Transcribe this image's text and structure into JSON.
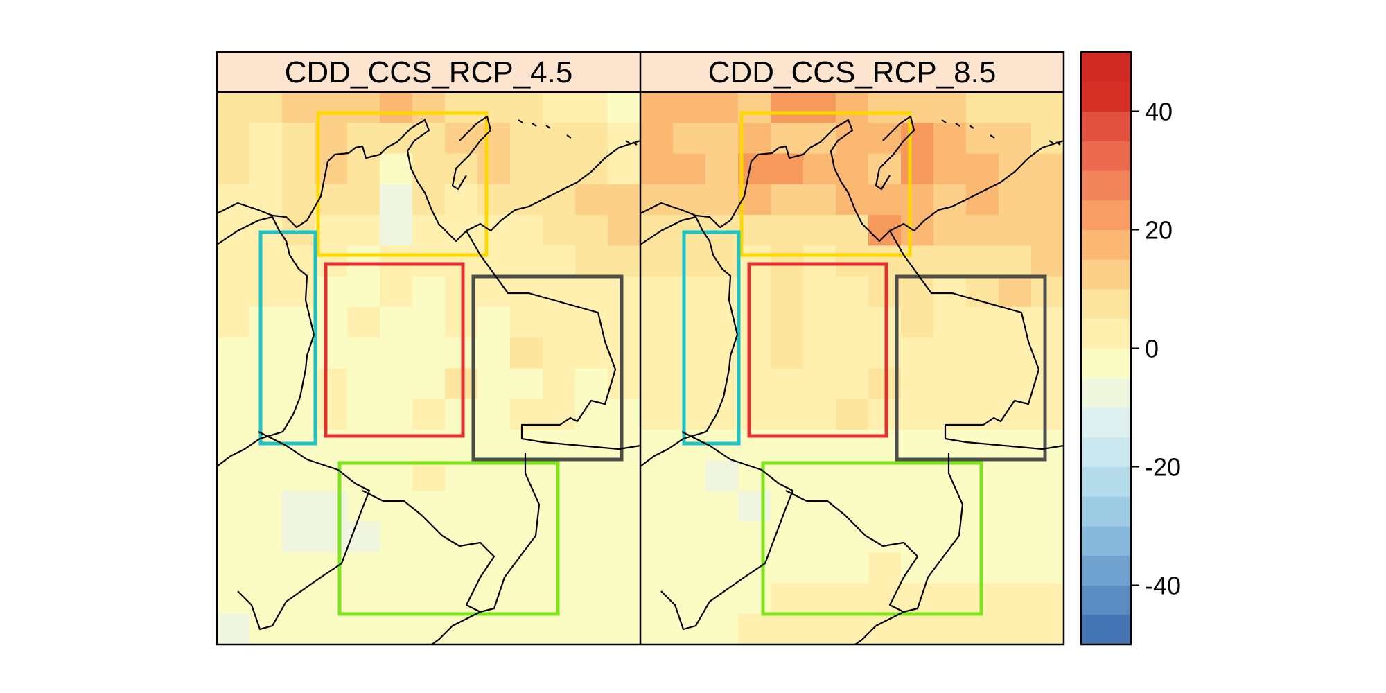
{
  "panels": [
    {
      "title": "CDD_CCS_RCP_4.5",
      "grid": [
        [
          3,
          3,
          4,
          4,
          4,
          5,
          4,
          3,
          3,
          3,
          2,
          2,
          1
        ],
        [
          3,
          2,
          3,
          4,
          3,
          3,
          3,
          4,
          4,
          3,
          3,
          3,
          2
        ],
        [
          3,
          2,
          3,
          4,
          3,
          1,
          3,
          3,
          4,
          3,
          3,
          3,
          2
        ],
        [
          2,
          2,
          3,
          3,
          3,
          0,
          3,
          2,
          3,
          3,
          3,
          4,
          4
        ],
        [
          2,
          2,
          3,
          2,
          2,
          0,
          2,
          2,
          2,
          2,
          3,
          3,
          4
        ],
        [
          2,
          2,
          2,
          2,
          1,
          2,
          2,
          2,
          2,
          2,
          2,
          3,
          3
        ],
        [
          2,
          2,
          2,
          1,
          1,
          2,
          1,
          2,
          2,
          2,
          2,
          2,
          2
        ],
        [
          2,
          1,
          1,
          1,
          2,
          1,
          1,
          2,
          1,
          2,
          2,
          2,
          2
        ],
        [
          1,
          1,
          1,
          1,
          1,
          1,
          1,
          1,
          1,
          3,
          2,
          2,
          2
        ],
        [
          1,
          1,
          1,
          2,
          1,
          1,
          1,
          3,
          1,
          1,
          2,
          1,
          2
        ],
        [
          1,
          1,
          1,
          2,
          1,
          1,
          2,
          1,
          1,
          2,
          2,
          1,
          1
        ],
        [
          1,
          1,
          1,
          1,
          1,
          1,
          1,
          1,
          1,
          1,
          1,
          1,
          1
        ],
        [
          1,
          1,
          1,
          1,
          1,
          1,
          2,
          1,
          1,
          1,
          1,
          1,
          1
        ],
        [
          1,
          1,
          0,
          0,
          1,
          1,
          1,
          1,
          1,
          1,
          1,
          1,
          1
        ],
        [
          1,
          1,
          0,
          0,
          0,
          1,
          1,
          1,
          1,
          1,
          1,
          1,
          1
        ],
        [
          1,
          1,
          1,
          1,
          1,
          1,
          1,
          1,
          1,
          1,
          1,
          1,
          1
        ],
        [
          1,
          1,
          1,
          1,
          1,
          1,
          1,
          1,
          1,
          1,
          1,
          1,
          1
        ],
        [
          0,
          1,
          1,
          1,
          1,
          1,
          1,
          1,
          1,
          1,
          1,
          1,
          1
        ]
      ]
    },
    {
      "title": "CDD_CCS_RCP_8.5",
      "grid": [
        [
          5,
          5,
          5,
          4,
          6,
          6,
          5,
          4,
          4,
          4,
          3,
          3,
          3
        ],
        [
          5,
          4,
          4,
          5,
          4,
          4,
          5,
          5,
          6,
          5,
          4,
          4,
          3
        ],
        [
          5,
          5,
          4,
          6,
          6,
          5,
          5,
          4,
          6,
          5,
          5,
          4,
          4
        ],
        [
          4,
          4,
          4,
          5,
          4,
          4,
          5,
          5,
          5,
          4,
          5,
          4,
          4
        ],
        [
          3,
          3,
          3,
          3,
          3,
          3,
          3,
          6,
          5,
          4,
          4,
          4,
          4
        ],
        [
          3,
          3,
          3,
          2,
          3,
          2,
          3,
          3,
          3,
          3,
          3,
          3,
          4
        ],
        [
          2,
          2,
          2,
          2,
          3,
          2,
          2,
          3,
          3,
          2,
          3,
          4,
          3
        ],
        [
          2,
          2,
          2,
          2,
          3,
          2,
          2,
          2,
          3,
          2,
          2,
          2,
          2
        ],
        [
          2,
          2,
          2,
          2,
          3,
          2,
          2,
          2,
          2,
          2,
          2,
          2,
          2
        ],
        [
          2,
          2,
          2,
          2,
          2,
          2,
          2,
          3,
          2,
          2,
          2,
          2,
          2
        ],
        [
          2,
          2,
          2,
          2,
          2,
          2,
          3,
          2,
          2,
          2,
          2,
          2,
          2
        ],
        [
          1,
          1,
          1,
          1,
          1,
          1,
          1,
          1,
          1,
          1,
          1,
          1,
          1
        ],
        [
          1,
          1,
          0,
          1,
          1,
          1,
          1,
          1,
          1,
          1,
          1,
          1,
          1
        ],
        [
          1,
          1,
          1,
          0,
          1,
          1,
          1,
          1,
          1,
          1,
          1,
          1,
          1
        ],
        [
          1,
          1,
          1,
          1,
          1,
          1,
          1,
          1,
          1,
          1,
          1,
          1,
          1
        ],
        [
          1,
          1,
          1,
          1,
          1,
          1,
          1,
          2,
          1,
          1,
          1,
          1,
          1
        ],
        [
          1,
          1,
          1,
          1,
          2,
          2,
          2,
          2,
          2,
          2,
          2,
          2,
          2
        ],
        [
          1,
          1,
          1,
          2,
          2,
          2,
          2,
          2,
          2,
          2,
          2,
          2,
          2
        ]
      ]
    }
  ],
  "palette": [
    "#f0f5df",
    "#fbfbc4",
    "#fff0b0",
    "#fee59d",
    "#fdd08a",
    "#fbb873",
    "#f59a5c"
  ],
  "colorbar": {
    "min": -50,
    "max": 50,
    "ticks": [
      40,
      20,
      0,
      -20,
      -40
    ],
    "tick_labels": [
      "40",
      "20",
      "0",
      "-20",
      "-40"
    ],
    "colors": [
      "#4575b4",
      "#5a8cc2",
      "#6fa2cf",
      "#85b8db",
      "#9dcbe4",
      "#b4dbea",
      "#cbe7ef",
      "#dff0f0",
      "#eef6dd",
      "#fbfbc4",
      "#fff0b0",
      "#fee59d",
      "#fdd08a",
      "#fbb873",
      "#f89d63",
      "#f2845a",
      "#ec6a4d",
      "#e25140",
      "#d73027",
      "#d02a25"
    ]
  },
  "region_colors": {
    "caribbean": "#ffd700",
    "pacific": "#1ec3c8",
    "andes": "#e03030",
    "orinoquia": "#4d4d4d",
    "amazon": "#7ce31c"
  },
  "map_colors": {
    "border": "#000000",
    "strip": "#fde4cf"
  }
}
